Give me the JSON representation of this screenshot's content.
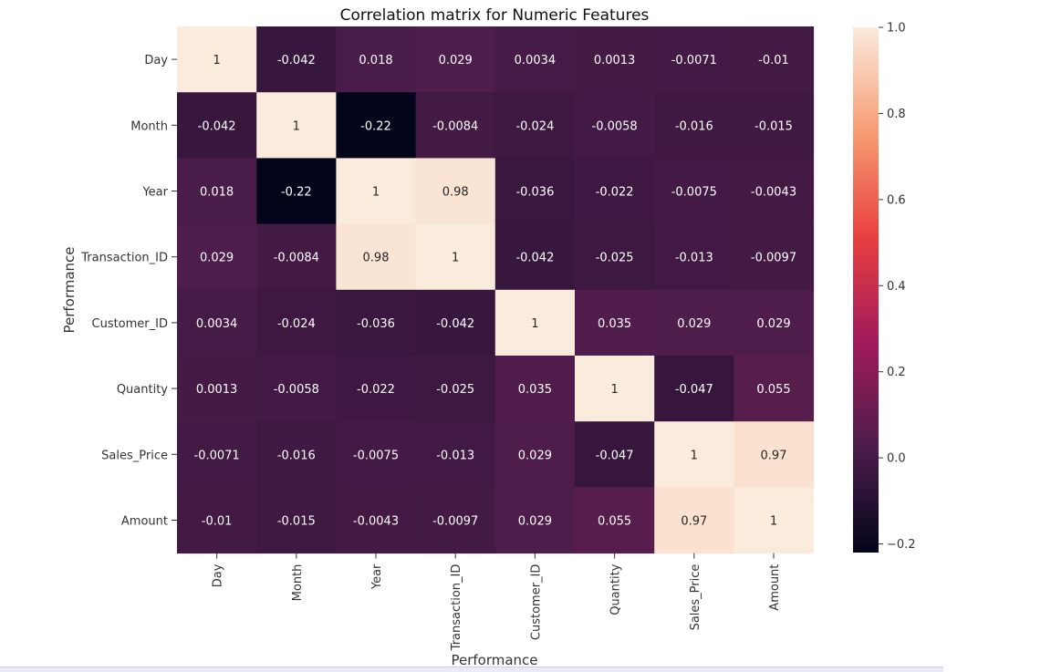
{
  "chart_data": {
    "type": "heatmap",
    "title": "Correlation matrix for Numeric Features",
    "xlabel": "Performance",
    "ylabel": "Performance",
    "columns": [
      "Day",
      "Month",
      "Year",
      "Transaction_ID",
      "Customer_ID",
      "Quantity",
      "Sales_Price",
      "Amount"
    ],
    "rows": [
      "Day",
      "Month",
      "Year",
      "Transaction_ID",
      "Customer_ID",
      "Quantity",
      "Sales_Price",
      "Amount"
    ],
    "values": [
      [
        1,
        -0.042,
        0.018,
        0.029,
        0.0034,
        0.0013,
        -0.0071,
        -0.01
      ],
      [
        -0.042,
        1,
        -0.22,
        -0.0084,
        -0.024,
        -0.0058,
        -0.016,
        -0.015
      ],
      [
        0.018,
        -0.22,
        1,
        0.98,
        -0.036,
        -0.022,
        -0.0075,
        -0.0043
      ],
      [
        0.029,
        -0.0084,
        0.98,
        1,
        -0.042,
        -0.025,
        -0.013,
        -0.0097
      ],
      [
        0.0034,
        -0.024,
        -0.036,
        -0.042,
        1,
        0.035,
        0.029,
        0.029
      ],
      [
        0.0013,
        -0.0058,
        -0.022,
        -0.025,
        0.035,
        1,
        -0.047,
        0.055
      ],
      [
        -0.0071,
        -0.016,
        -0.0075,
        -0.013,
        0.029,
        -0.047,
        1,
        0.97
      ],
      [
        -0.01,
        -0.015,
        -0.0043,
        -0.0097,
        0.029,
        0.055,
        0.97,
        1
      ]
    ],
    "colorscale": {
      "name": "rocket",
      "vmin": -0.22,
      "vmax": 1.0,
      "stops": [
        "#03051a",
        "#4c1d4b",
        "#a11a5b",
        "#e83f3f",
        "#f69c73",
        "#faebdd"
      ]
    },
    "colorbar_ticks": [
      "1.0",
      "0.8",
      "0.6",
      "0.4",
      "0.2",
      "0.0",
      "−0.2"
    ]
  }
}
